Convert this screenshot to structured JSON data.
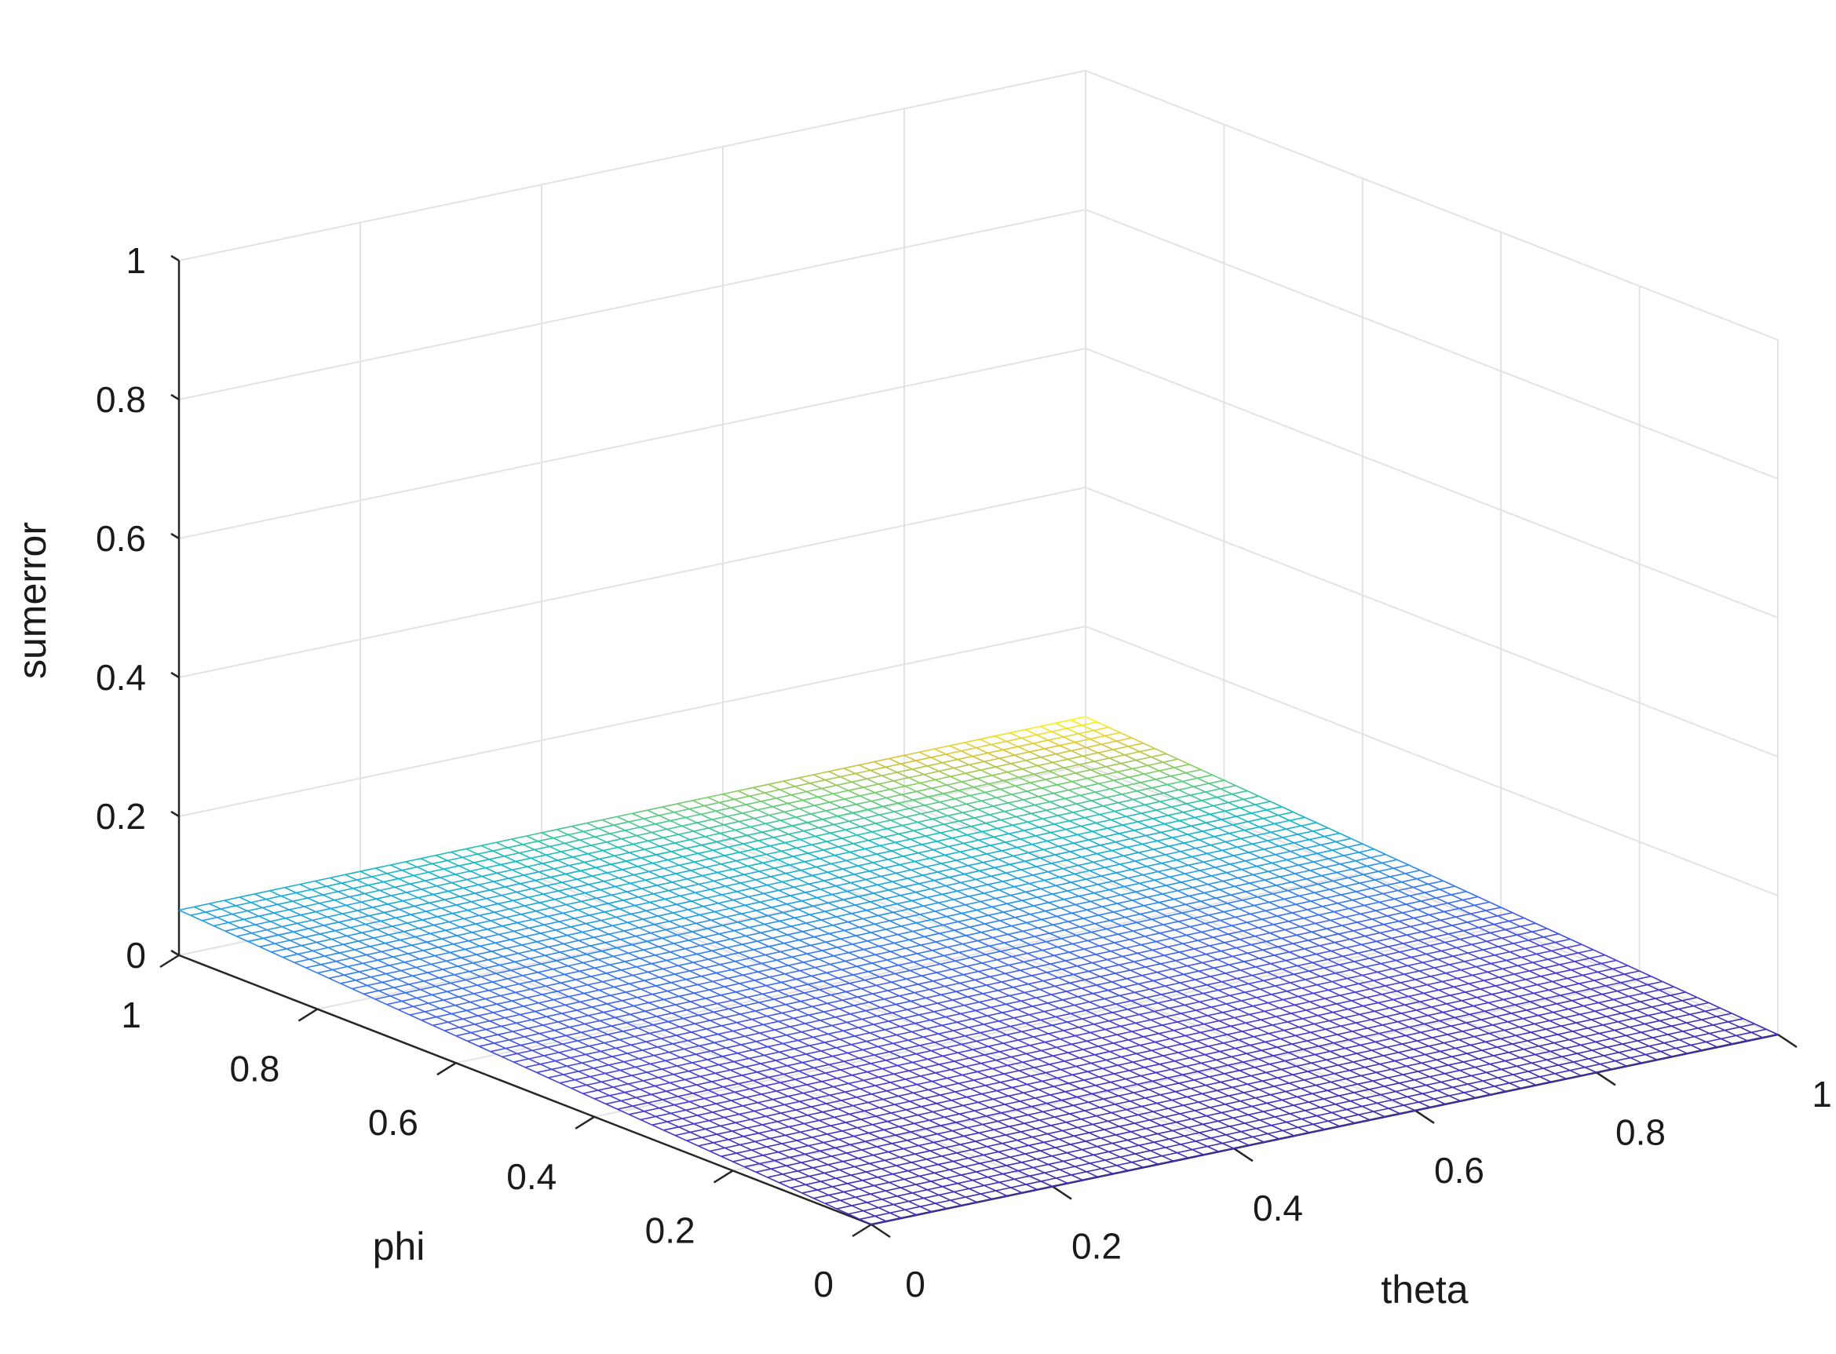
{
  "chart_data": {
    "type": "surface",
    "title": "",
    "xlabel": "theta",
    "ylabel": "phi",
    "zlabel": "sumerror",
    "xlim": [
      0,
      1
    ],
    "ylim": [
      0,
      1
    ],
    "zlim": [
      0,
      1
    ],
    "x_ticks": [
      "0",
      "0.2",
      "0.4",
      "0.6",
      "0.8",
      "1"
    ],
    "y_ticks": [
      "0",
      "0.2",
      "0.4",
      "0.6",
      "0.8",
      "1"
    ],
    "z_ticks": [
      "0",
      "0.2",
      "0.4",
      "0.6",
      "0.8",
      "1"
    ],
    "grid": true,
    "colormap": "parula",
    "mesh_resolution": 61,
    "corner_values": {
      "theta0_phi0": 0.0,
      "theta1_phi0": 0.0,
      "theta0_phi1": 0.065,
      "theta1_phi1": 0.07
    },
    "min_value": 0.0
  }
}
